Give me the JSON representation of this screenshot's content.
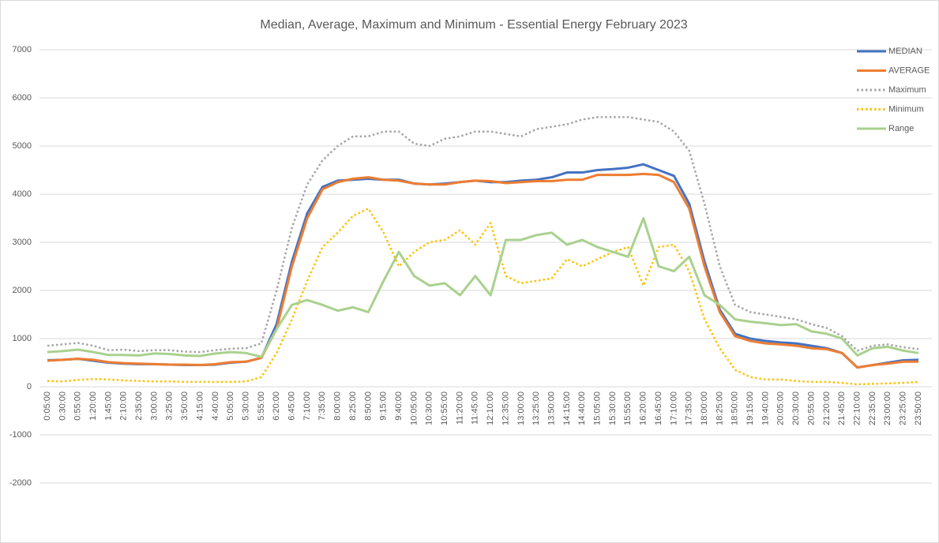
{
  "chart_data": {
    "type": "line",
    "title": "Median, Average, Maximum and Minimum - Essential Energy February 2023",
    "categories": [
      "0:05:00",
      "0:30:00",
      "0:55:00",
      "1:20:00",
      "1:45:00",
      "2:10:00",
      "2:35:00",
      "3:00:00",
      "3:25:00",
      "3:50:00",
      "4:15:00",
      "4:40:00",
      "5:05:00",
      "5:30:00",
      "5:55:00",
      "6:20:00",
      "6:45:00",
      "7:10:00",
      "7:35:00",
      "8:00:00",
      "8:25:00",
      "8:50:00",
      "9:15:00",
      "9:40:00",
      "10:05:00",
      "10:30:00",
      "10:55:00",
      "11:20:00",
      "11:45:00",
      "12:10:00",
      "12:35:00",
      "13:00:00",
      "13:25:00",
      "13:50:00",
      "14:15:00",
      "14:40:00",
      "15:05:00",
      "15:30:00",
      "15:55:00",
      "16:20:00",
      "16:45:00",
      "17:10:00",
      "17:35:00",
      "18:00:00",
      "18:25:00",
      "18:50:00",
      "19:15:00",
      "19:40:00",
      "20:05:00",
      "20:30:00",
      "20:55:00",
      "21:20:00",
      "21:45:00",
      "22:10:00",
      "22:35:00",
      "23:00:00",
      "23:25:00",
      "23:50:00"
    ],
    "series": [
      {
        "name": "MEDIAN",
        "color": "#4472c4",
        "style": "solid",
        "values": [
          550,
          560,
          580,
          540,
          500,
          480,
          470,
          470,
          460,
          450,
          450,
          460,
          500,
          520,
          600,
          1300,
          2600,
          3600,
          4150,
          4280,
          4300,
          4320,
          4300,
          4300,
          4220,
          4200,
          4220,
          4250,
          4280,
          4250,
          4250,
          4280,
          4300,
          4350,
          4450,
          4450,
          4500,
          4520,
          4550,
          4620,
          4500,
          4380,
          3800,
          2600,
          1600,
          1100,
          1000,
          950,
          920,
          900,
          850,
          800,
          700,
          400,
          450,
          500,
          550,
          560
        ]
      },
      {
        "name": "AVERAGE",
        "color": "#ed7d31",
        "style": "solid",
        "values": [
          540,
          560,
          580,
          560,
          510,
          490,
          480,
          470,
          460,
          460,
          450,
          470,
          510,
          520,
          600,
          1200,
          2500,
          3500,
          4100,
          4250,
          4320,
          4350,
          4300,
          4280,
          4220,
          4200,
          4200,
          4250,
          4280,
          4270,
          4230,
          4250,
          4270,
          4270,
          4300,
          4300,
          4400,
          4400,
          4400,
          4420,
          4400,
          4250,
          3700,
          2500,
          1550,
          1050,
          950,
          900,
          880,
          850,
          800,
          780,
          700,
          400,
          450,
          480,
          520,
          520
        ]
      },
      {
        "name": "Maximum",
        "color": "#a5a5a5",
        "style": "dotted",
        "values": [
          850,
          880,
          910,
          850,
          760,
          770,
          740,
          760,
          760,
          730,
          720,
          760,
          790,
          800,
          900,
          2000,
          3300,
          4200,
          4700,
          5000,
          5200,
          5200,
          5300,
          5300,
          5050,
          5000,
          5150,
          5200,
          5300,
          5300,
          5250,
          5200,
          5350,
          5400,
          5450,
          5550,
          5600,
          5600,
          5600,
          5550,
          5500,
          5300,
          4900,
          3800,
          2500,
          1700,
          1550,
          1500,
          1450,
          1400,
          1300,
          1220,
          1050,
          750,
          850,
          880,
          820,
          780
        ]
      },
      {
        "name": "Minimum",
        "color": "#ffc000",
        "style": "dotted",
        "values": [
          120,
          110,
          140,
          160,
          150,
          130,
          120,
          110,
          110,
          100,
          100,
          100,
          100,
          110,
          200,
          700,
          1400,
          2200,
          2900,
          3200,
          3550,
          3700,
          3200,
          2500,
          2800,
          3000,
          3050,
          3250,
          2950,
          3400,
          2300,
          2150,
          2200,
          2250,
          2650,
          2500,
          2650,
          2800,
          2900,
          2100,
          2900,
          2950,
          2400,
          1400,
          800,
          350,
          200,
          150,
          150,
          120,
          100,
          100,
          80,
          50,
          60,
          70,
          80,
          100
        ]
      },
      {
        "name": "Range",
        "color": "#a9d18e",
        "style": "solid",
        "values": [
          720,
          740,
          770,
          720,
          660,
          660,
          650,
          690,
          680,
          650,
          640,
          690,
          720,
          700,
          620,
          1200,
          1700,
          1800,
          1700,
          1580,
          1650,
          1550,
          2200,
          2800,
          2300,
          2100,
          2150,
          1900,
          2300,
          1900,
          3050,
          3050,
          3150,
          3200,
          2950,
          3050,
          2900,
          2800,
          2700,
          3500,
          2500,
          2400,
          2700,
          1900,
          1700,
          1400,
          1350,
          1320,
          1280,
          1300,
          1150,
          1100,
          1000,
          650,
          800,
          830,
          750,
          700
        ]
      }
    ],
    "ylim": [
      -2000,
      7000
    ],
    "yticks": [
      -2000,
      -1000,
      0,
      1000,
      2000,
      3000,
      4000,
      5000,
      6000,
      7000
    ],
    "grid": true,
    "legend": "upper right"
  }
}
